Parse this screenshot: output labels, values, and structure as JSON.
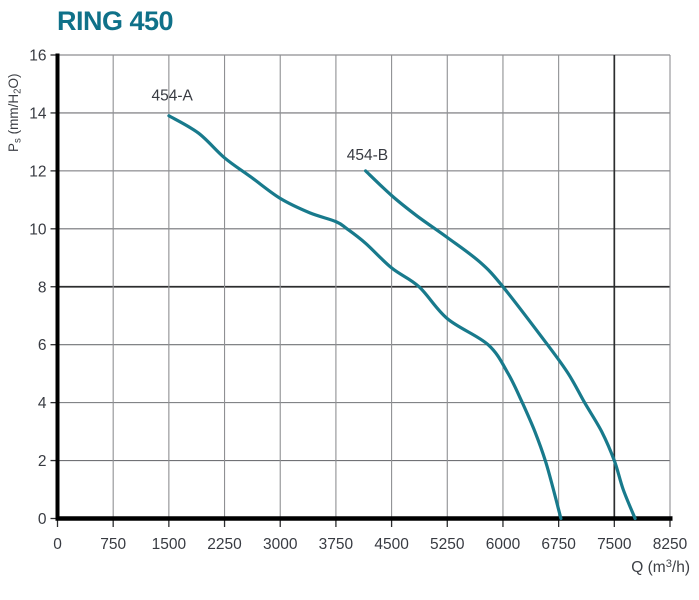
{
  "header": {
    "title": "RING 450"
  },
  "colors": {
    "title": "#0f7189",
    "curve": "#187a8c",
    "grid_vertical": "#8f9093",
    "grid_horizontal": "#717276",
    "grid_emphasis": "#2c2d2f",
    "axis": "#000000",
    "tick": "#2c2d2f",
    "text": "#383b42"
  },
  "axes": {
    "y_label_parts": [
      {
        "text": "P"
      },
      {
        "text": "s",
        "script": "sub"
      },
      {
        "text": " (mm/H"
      },
      {
        "text": "2",
        "script": "sub"
      },
      {
        "text": "O)"
      }
    ],
    "x_label_parts": [
      {
        "text": "Q (m"
      },
      {
        "text": "3",
        "script": "sup"
      },
      {
        "text": "/h)"
      }
    ]
  },
  "chart_data": {
    "type": "line",
    "title": "RING 450",
    "xlabel": "Q (m3/h)",
    "ylabel": "Ps (mm/H2O)",
    "xlim": [
      0,
      8250
    ],
    "ylim": [
      0,
      16
    ],
    "x_ticks": [
      0,
      750,
      1500,
      2250,
      3000,
      3750,
      4500,
      5250,
      6000,
      6750,
      7500,
      8250
    ],
    "y_ticks": [
      0,
      2,
      4,
      6,
      8,
      10,
      12,
      14,
      16
    ],
    "grid": true,
    "emphasized_x_gridline": 7500,
    "emphasized_y_gridline": 8,
    "legend_position": "inline-labels",
    "series": [
      {
        "name": "454-A",
        "label": "454-A",
        "color": "#187a8c",
        "label_anchor": {
          "q": 1545,
          "ps": 14.6
        },
        "points": [
          [
            1500,
            13.9
          ],
          [
            1900,
            13.3
          ],
          [
            2250,
            12.45
          ],
          [
            2600,
            11.8
          ],
          [
            3000,
            11.05
          ],
          [
            3400,
            10.55
          ],
          [
            3750,
            10.25
          ],
          [
            3900,
            10.0
          ],
          [
            4150,
            9.5
          ],
          [
            4500,
            8.65
          ],
          [
            4870,
            8.0
          ],
          [
            5250,
            6.9
          ],
          [
            5800,
            6.0
          ],
          [
            6070,
            5.0
          ],
          [
            6260,
            4.0
          ],
          [
            6430,
            3.0
          ],
          [
            6570,
            2.0
          ],
          [
            6680,
            1.0
          ],
          [
            6780,
            0
          ]
        ]
      },
      {
        "name": "454-B",
        "label": "454-B",
        "color": "#187a8c",
        "label_anchor": {
          "q": 4175,
          "ps": 12.55
        },
        "points": [
          [
            4150,
            12.0
          ],
          [
            4500,
            11.15
          ],
          [
            4840,
            10.45
          ],
          [
            5250,
            9.7
          ],
          [
            5690,
            8.85
          ],
          [
            6000,
            8.0
          ],
          [
            6600,
            6.0
          ],
          [
            6880,
            5.0
          ],
          [
            7100,
            4.0
          ],
          [
            7330,
            3.0
          ],
          [
            7500,
            2.0
          ],
          [
            7620,
            1.0
          ],
          [
            7780,
            0
          ]
        ]
      }
    ]
  }
}
